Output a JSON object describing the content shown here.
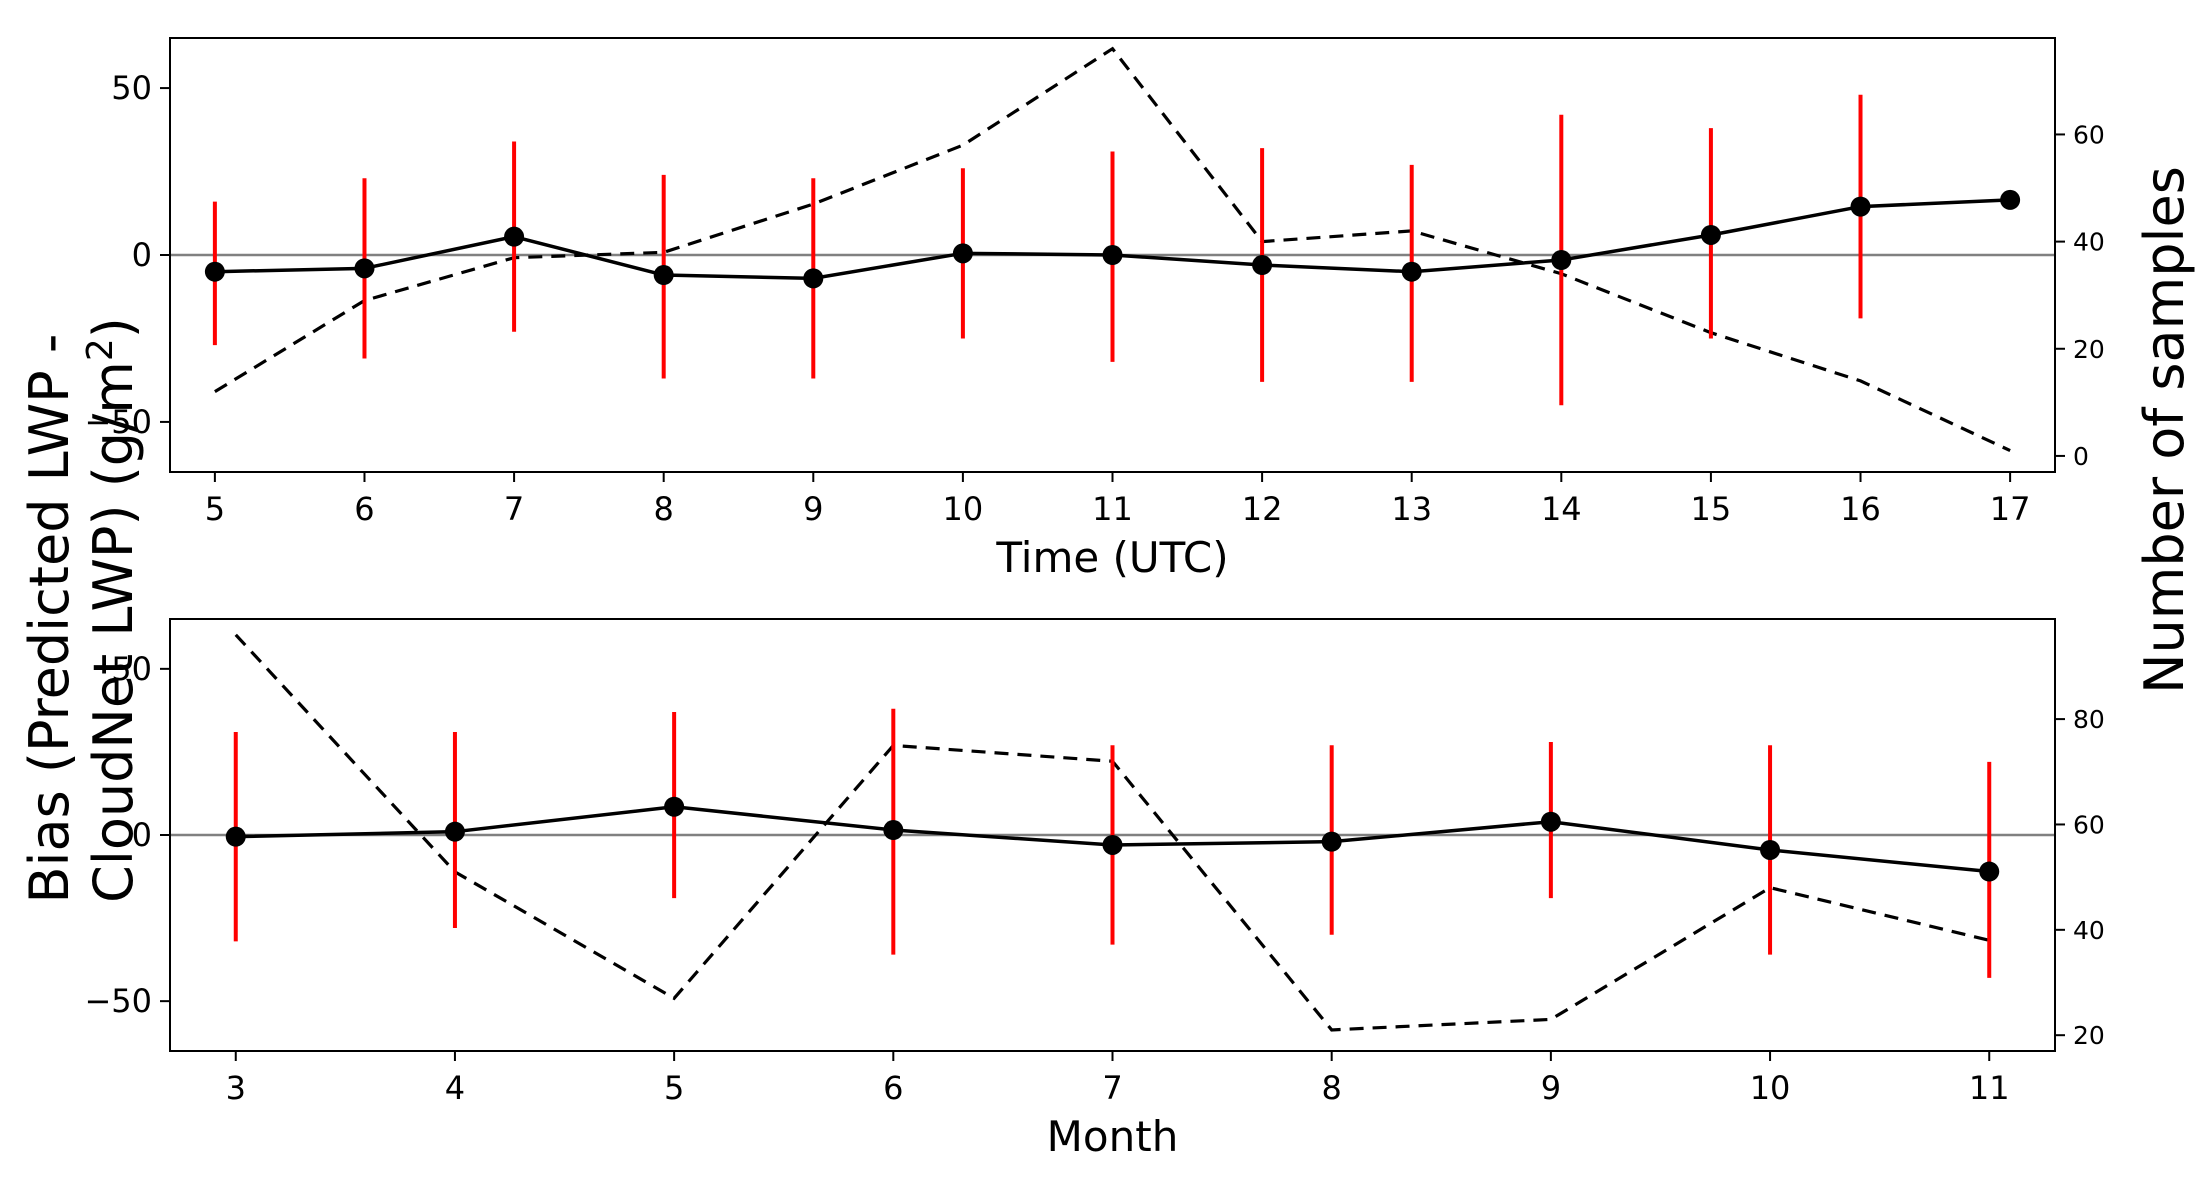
{
  "chart_data": [
    {
      "type": "line",
      "panel": "top",
      "xlabel": "Time (UTC)",
      "x": [
        5,
        6,
        7,
        8,
        9,
        10,
        11,
        12,
        13,
        14,
        15,
        16,
        17
      ],
      "xticks": [
        "5",
        "6",
        "7",
        "8",
        "9",
        "10",
        "11",
        "12",
        "13",
        "14",
        "15",
        "16",
        "17"
      ],
      "xlim": [
        4.7,
        17.3
      ],
      "ylim": [
        -65,
        65
      ],
      "yticks": [
        -50,
        0,
        50
      ],
      "ytick_labels": [
        "−50",
        "0",
        "50"
      ],
      "y2lim": [
        -3,
        78
      ],
      "y2ticks": [
        0,
        20,
        40,
        60
      ],
      "y2tick_labels": [
        "0",
        "20",
        "40",
        "60"
      ],
      "zero_line": true,
      "series": [
        {
          "name": "bias",
          "style": "solid-marker",
          "axis": "left",
          "values": [
            -5,
            -4,
            5.5,
            -6,
            -7,
            0.5,
            0,
            -3,
            -5,
            -1.5,
            6,
            14.5,
            16.5
          ],
          "err_low": [
            -27,
            -31,
            -23,
            -37,
            -37,
            -25,
            -32,
            -38,
            -38,
            -45,
            -25,
            -19,
            null
          ],
          "err_high": [
            16,
            23,
            34,
            24,
            23,
            26,
            31,
            32,
            27,
            42,
            38,
            48,
            null
          ]
        },
        {
          "name": "samples",
          "style": "dashed",
          "axis": "right",
          "values": [
            12,
            29,
            37,
            38,
            47,
            58,
            76,
            40,
            42,
            34,
            23,
            14,
            1
          ]
        }
      ]
    },
    {
      "type": "line",
      "panel": "bottom",
      "xlabel": "Month",
      "x": [
        3,
        4,
        5,
        6,
        7,
        8,
        9,
        10,
        11
      ],
      "xticks": [
        "3",
        "4",
        "5",
        "6",
        "7",
        "8",
        "9",
        "10",
        "11"
      ],
      "xlim": [
        2.7,
        11.3
      ],
      "ylim": [
        -65,
        65
      ],
      "yticks": [
        -50,
        0,
        50
      ],
      "ytick_labels": [
        "−50",
        "0",
        "50"
      ],
      "y2lim": [
        17,
        99
      ],
      "y2ticks": [
        20,
        40,
        60,
        80
      ],
      "y2tick_labels": [
        "20",
        "40",
        "60",
        "80"
      ],
      "zero_line": true,
      "series": [
        {
          "name": "bias",
          "style": "solid-marker",
          "axis": "left",
          "values": [
            -0.5,
            1,
            8.5,
            1.5,
            -3,
            -2,
            4,
            -4.5,
            -11
          ],
          "err_low": [
            -32,
            -28,
            -19,
            -36,
            -33,
            -30,
            -19,
            -36,
            -43
          ],
          "err_high": [
            31,
            31,
            37,
            38,
            27,
            27,
            28,
            27,
            22
          ]
        },
        {
          "name": "samples",
          "style": "dashed",
          "axis": "right",
          "values": [
            96,
            51,
            27,
            75,
            72,
            21,
            23,
            48,
            38
          ]
        }
      ]
    }
  ],
  "left_axis_label": {
    "line1": "Bias (Predicted LWP -",
    "line2_main": "CloudNet LWP) (g/m",
    "line2_sup": "2",
    "line2_end": ")"
  },
  "right_axis_label": "Number of samples",
  "colors": {
    "error_bar": "#ff0000",
    "line": "#000000",
    "zero_line": "#808080"
  }
}
